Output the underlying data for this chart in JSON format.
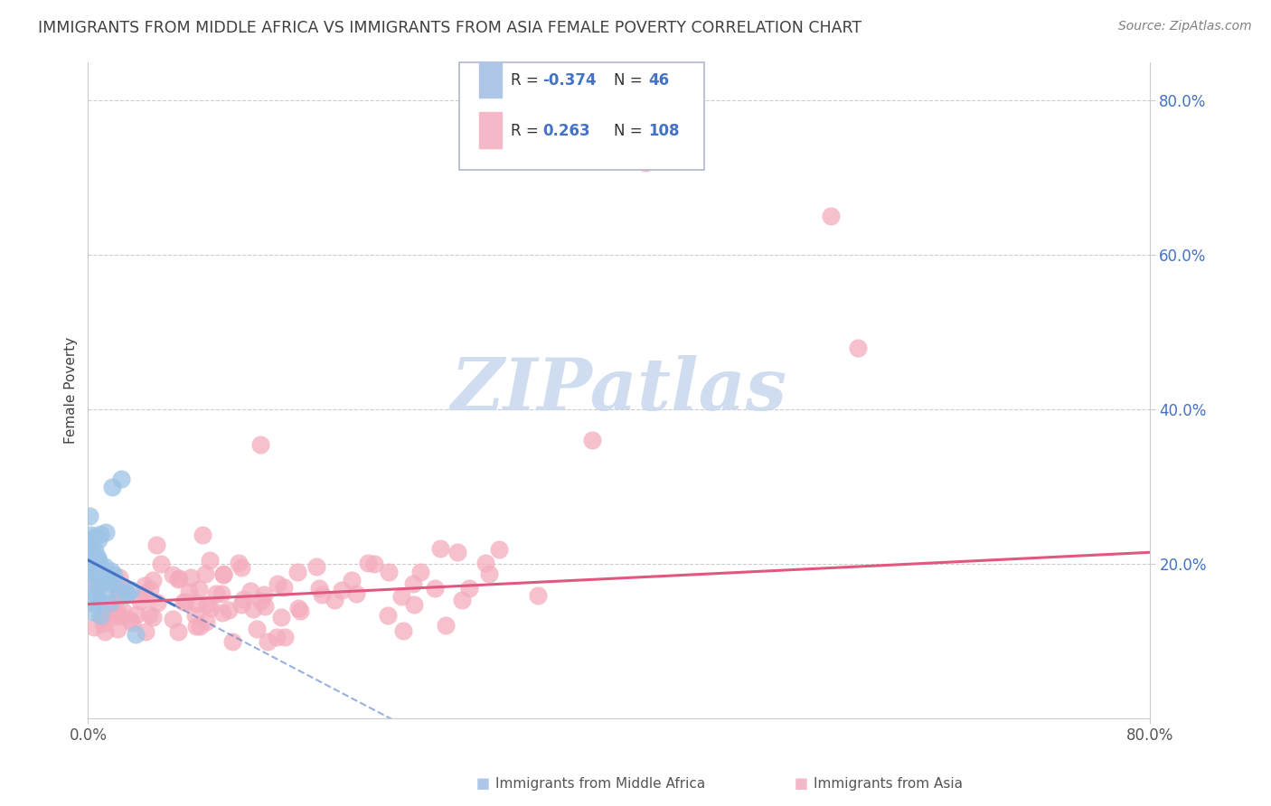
{
  "title": "IMMIGRANTS FROM MIDDLE AFRICA VS IMMIGRANTS FROM ASIA FEMALE POVERTY CORRELATION CHART",
  "source": "Source: ZipAtlas.com",
  "ylabel": "Female Poverty",
  "xlim": [
    0.0,
    0.8
  ],
  "ylim": [
    0.0,
    0.85
  ],
  "ytick_positions": [
    0.2,
    0.4,
    0.6,
    0.8
  ],
  "ytick_labels": [
    "20.0%",
    "40.0%",
    "60.0%",
    "80.0%"
  ],
  "xtick_positions": [
    0.0,
    0.8
  ],
  "xtick_labels": [
    "0.0%",
    "80.0%"
  ],
  "background_color": "#ffffff",
  "grid_color": "#cccccc",
  "blue_line_color": "#4472c4",
  "pink_line_color": "#e05880",
  "scatter_blue_color": "#9dc3e6",
  "scatter_pink_color": "#f4acbd",
  "legend_box_color": "#4472c4",
  "legend_text_color": "#4472c4",
  "watermark_color": "#c8d8ee",
  "title_color": "#404040",
  "source_color": "#808080",
  "ylabel_color": "#404040",
  "tick_color": "#4472c4"
}
